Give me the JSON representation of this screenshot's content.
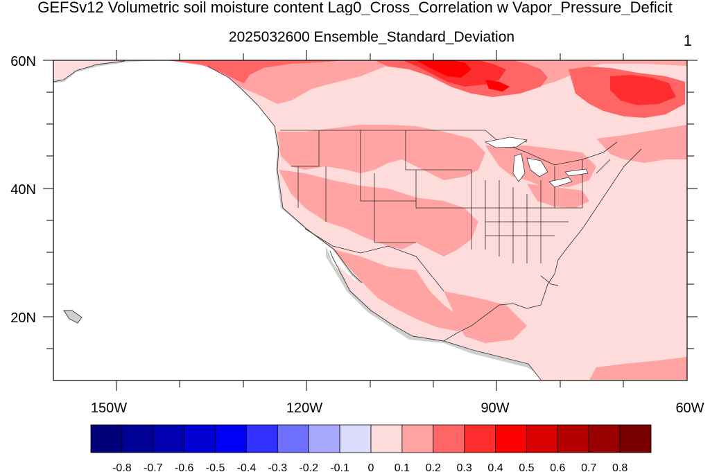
{
  "title": "GEFSv12 Volumetric soil moisture content Lag0_Cross_Correlation w Vapor_Pressure_Deficit",
  "subtitle": "2025032600 Ensemble_Standard_Deviation",
  "panel_number": "1",
  "map": {
    "lat_labels": [
      "60N",
      "40N",
      "20N"
    ],
    "lon_labels": [
      "150W",
      "120W",
      "90W",
      "60W"
    ],
    "lat_range": [
      10,
      60
    ],
    "lon_range": [
      -160,
      -60
    ]
  },
  "colorbar": {
    "labels": [
      "-0.8",
      "-0.7",
      "-0.6",
      "-0.5",
      "-0.4",
      "-0.3",
      "-0.2",
      "-0.1",
      "0",
      "0.1",
      "0.2",
      "0.3",
      "0.4",
      "0.5",
      "0.6",
      "0.7",
      "0.8"
    ],
    "colors": [
      "#00007a",
      "#000094",
      "#0000b0",
      "#0000d4",
      "#0000f8",
      "#3030ff",
      "#7070ff",
      "#a8a8ff",
      "#dcdcff",
      "#ffdcdc",
      "#ffa3a3",
      "#ff6565",
      "#ff2e2e",
      "#ff0000",
      "#d80000",
      "#b50000",
      "#990000",
      "#7a0000"
    ]
  }
}
